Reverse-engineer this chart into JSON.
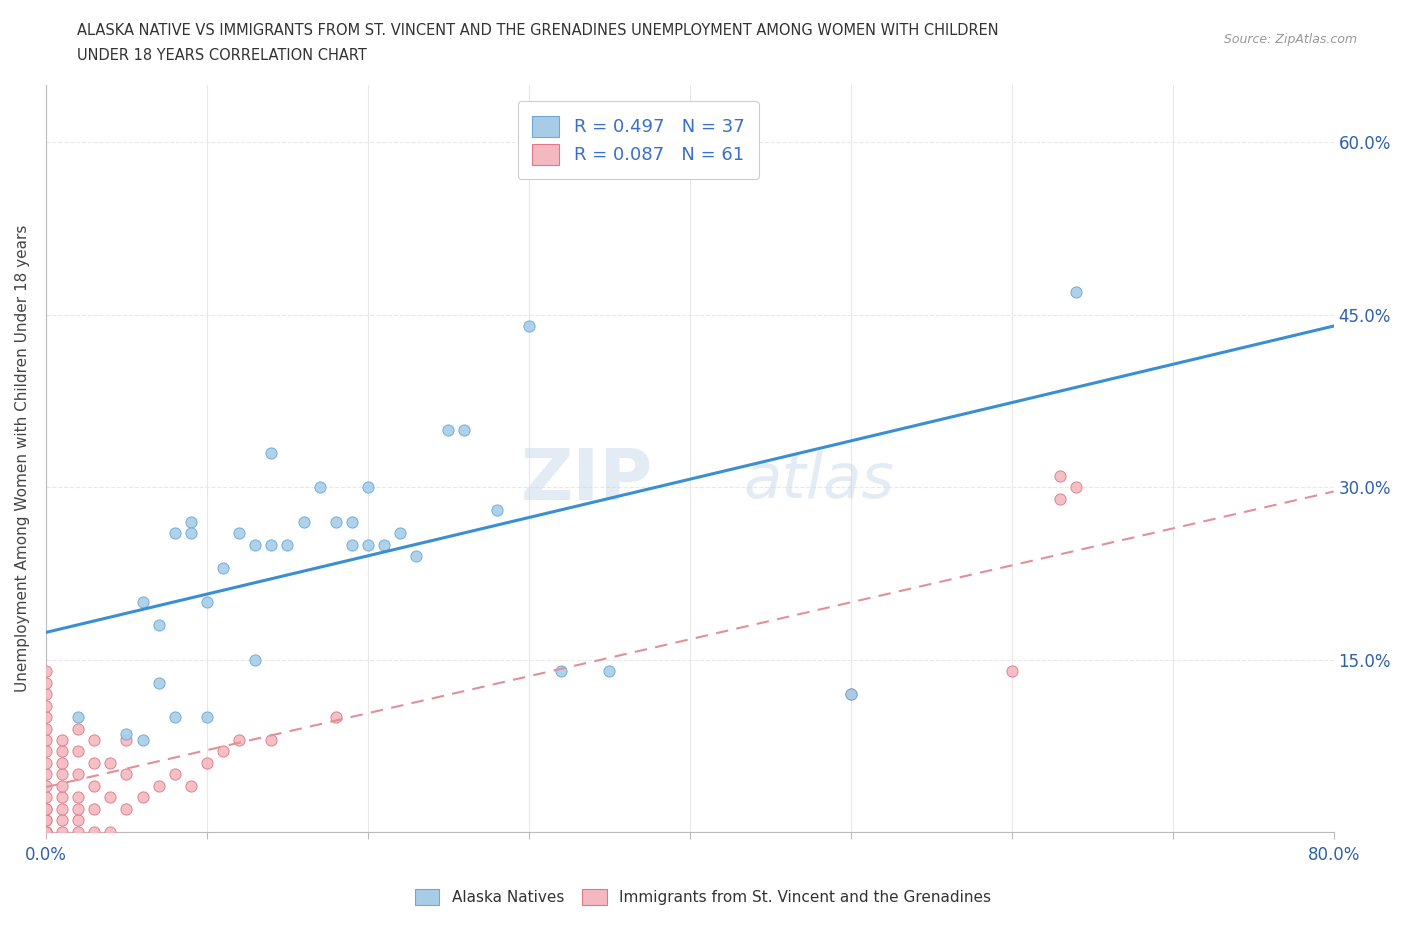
{
  "title_line1": "ALASKA NATIVE VS IMMIGRANTS FROM ST. VINCENT AND THE GRENADINES UNEMPLOYMENT AMONG WOMEN WITH CHILDREN",
  "title_line2": "UNDER 18 YEARS CORRELATION CHART",
  "source": "Source: ZipAtlas.com",
  "ylabel": "Unemployment Among Women with Children Under 18 years",
  "xlim": [
    0,
    0.8
  ],
  "ylim": [
    0,
    0.65
  ],
  "alaska_native_x": [
    0.02,
    0.05,
    0.06,
    0.07,
    0.08,
    0.09,
    0.1,
    0.1,
    0.11,
    0.12,
    0.13,
    0.14,
    0.15,
    0.16,
    0.17,
    0.18,
    0.19,
    0.2,
    0.21,
    0.22,
    0.23,
    0.25,
    0.26,
    0.28,
    0.3,
    0.32,
    0.35,
    0.5,
    0.64,
    0.06,
    0.07,
    0.08,
    0.09,
    0.13,
    0.14,
    0.19,
    0.2
  ],
  "alaska_native_y": [
    0.1,
    0.085,
    0.08,
    0.13,
    0.1,
    0.27,
    0.2,
    0.1,
    0.23,
    0.26,
    0.15,
    0.25,
    0.25,
    0.27,
    0.3,
    0.27,
    0.27,
    0.25,
    0.25,
    0.26,
    0.24,
    0.35,
    0.35,
    0.28,
    0.44,
    0.14,
    0.14,
    0.12,
    0.47,
    0.2,
    0.18,
    0.26,
    0.26,
    0.25,
    0.33,
    0.25,
    0.3
  ],
  "immigrant_x": [
    0.0,
    0.0,
    0.0,
    0.0,
    0.0,
    0.0,
    0.0,
    0.0,
    0.0,
    0.0,
    0.0,
    0.0,
    0.0,
    0.0,
    0.0,
    0.0,
    0.0,
    0.0,
    0.0,
    0.0,
    0.01,
    0.01,
    0.01,
    0.01,
    0.01,
    0.01,
    0.01,
    0.01,
    0.01,
    0.02,
    0.02,
    0.02,
    0.02,
    0.02,
    0.02,
    0.02,
    0.03,
    0.03,
    0.03,
    0.03,
    0.03,
    0.04,
    0.04,
    0.04,
    0.05,
    0.05,
    0.05,
    0.06,
    0.07,
    0.08,
    0.09,
    0.1,
    0.11,
    0.12,
    0.14,
    0.18,
    0.5,
    0.6,
    0.63,
    0.63,
    0.64
  ],
  "immigrant_y": [
    0.0,
    0.0,
    0.0,
    0.0,
    0.01,
    0.01,
    0.02,
    0.02,
    0.03,
    0.04,
    0.05,
    0.06,
    0.07,
    0.08,
    0.09,
    0.1,
    0.11,
    0.12,
    0.13,
    0.14,
    0.0,
    0.01,
    0.02,
    0.03,
    0.04,
    0.05,
    0.06,
    0.07,
    0.08,
    0.0,
    0.01,
    0.02,
    0.03,
    0.05,
    0.07,
    0.09,
    0.0,
    0.02,
    0.04,
    0.06,
    0.08,
    0.0,
    0.03,
    0.06,
    0.02,
    0.05,
    0.08,
    0.03,
    0.04,
    0.05,
    0.04,
    0.06,
    0.07,
    0.08,
    0.08,
    0.1,
    0.12,
    0.14,
    0.29,
    0.31,
    0.3
  ],
  "alaska_color": "#a8cce8",
  "alaska_edge_color": "#6aaad4",
  "immigrant_color": "#f4b8c0",
  "immigrant_edge_color": "#e07888",
  "alaska_line_color": "#3a8fd4",
  "immigrant_line_color": "#e09098",
  "legend_text_color": "#3b6fcc",
  "alaska_R": 0.497,
  "alaska_N": 37,
  "immigrant_R": 0.087,
  "immigrant_N": 61,
  "watermark": "ZIP",
  "watermark2": "atlas",
  "background_color": "#ffffff",
  "grid_color": "#e8e8e8"
}
